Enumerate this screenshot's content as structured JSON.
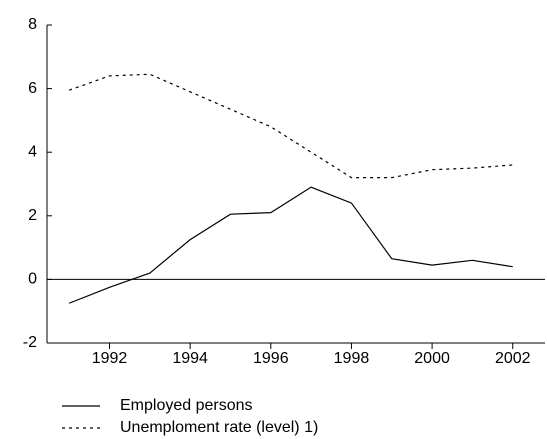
{
  "chart_data": {
    "type": "line",
    "x": [
      1991,
      1992,
      1993,
      1994,
      1995,
      1996,
      1997,
      1998,
      1999,
      2000,
      2001,
      2002
    ],
    "series": [
      {
        "name": "Employed persons",
        "color": "#000000",
        "dashed": false,
        "values": [
          -0.75,
          -0.25,
          0.2,
          1.25,
          2.05,
          2.1,
          2.9,
          2.4,
          0.65,
          0.45,
          0.6,
          0.4
        ]
      },
      {
        "name": "Unemploment rate (level) 1)",
        "color": "#000000",
        "dashed": true,
        "values": [
          5.95,
          6.4,
          6.45,
          5.9,
          5.35,
          4.8,
          4.0,
          3.2,
          3.2,
          3.45,
          3.5,
          3.6
        ]
      }
    ],
    "xlim": [
      1990.45,
      2002.8
    ],
    "xticks": [
      1992,
      1994,
      1996,
      1998,
      2000,
      2002
    ],
    "ylim": [
      -2,
      8
    ],
    "yticks": [
      -2,
      0,
      2,
      4,
      6,
      8
    ],
    "grid": false
  }
}
